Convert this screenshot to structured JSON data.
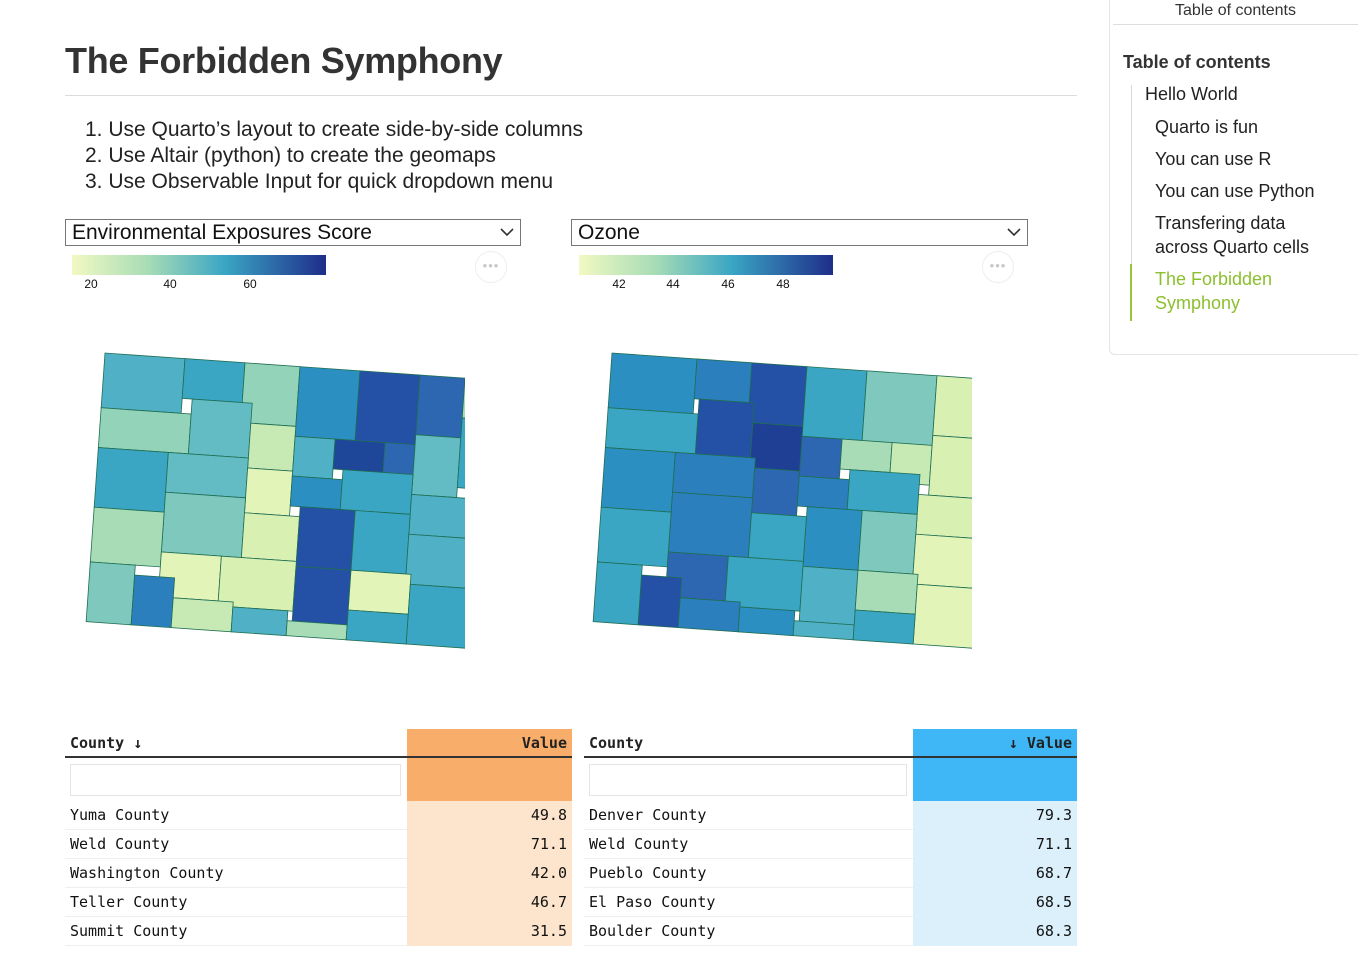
{
  "page": {
    "title": "The Forbidden Symphony",
    "steps": [
      "1. Use Quarto’s layout to create side-by-side columns",
      "2. Use Altair (python) to create the geomaps",
      "3. Use Observable Input for quick dropdown menu"
    ]
  },
  "left_panel": {
    "dropdown_value": "Environmental Exposures Score",
    "legend_ticks": [
      "20",
      "40",
      "60"
    ],
    "more_button": "•••"
  },
  "right_panel": {
    "dropdown_value": "Ozone",
    "legend_ticks": [
      "42",
      "44",
      "46",
      "48"
    ],
    "more_button": "•••"
  },
  "left_table": {
    "headers": {
      "county": "County ↓",
      "value": "Value"
    },
    "accent_color": "#f9ad6a",
    "cell_color": "#fde4cc",
    "rows": [
      {
        "county": "Yuma County",
        "value": "49.8"
      },
      {
        "county": "Weld County",
        "value": "71.1"
      },
      {
        "county": "Washington County",
        "value": "42.0"
      },
      {
        "county": "Teller County",
        "value": "46.7"
      },
      {
        "county": "Summit County",
        "value": "31.5"
      }
    ]
  },
  "right_table": {
    "headers": {
      "county": "County",
      "value": "↓ Value"
    },
    "accent_color": "#3fb6f5",
    "cell_color": "#dcf0fc",
    "rows": [
      {
        "county": "Denver County",
        "value": "79.3"
      },
      {
        "county": "Weld County",
        "value": "71.1"
      },
      {
        "county": "Pueblo County",
        "value": "68.7"
      },
      {
        "county": "El Paso County",
        "value": "68.5"
      },
      {
        "county": "Boulder County",
        "value": "68.3"
      }
    ]
  },
  "toc": {
    "header": "Table of contents",
    "title": "Table of contents",
    "items": {
      "hello": "Hello World",
      "quarto": "Quarto is fun",
      "r": "You can use R",
      "python": "You can use Python",
      "transfer_1": "Transfering data",
      "transfer_2": "across Quarto cells",
      "forbidden_1": "The Forbidden",
      "forbidden_2": "Symphony"
    },
    "active_color": "#8cbf2f"
  },
  "colors": {
    "scale_low": "#f2f9c2",
    "scale_mid": "#3aa6c4",
    "scale_high": "#1f2d8a"
  }
}
